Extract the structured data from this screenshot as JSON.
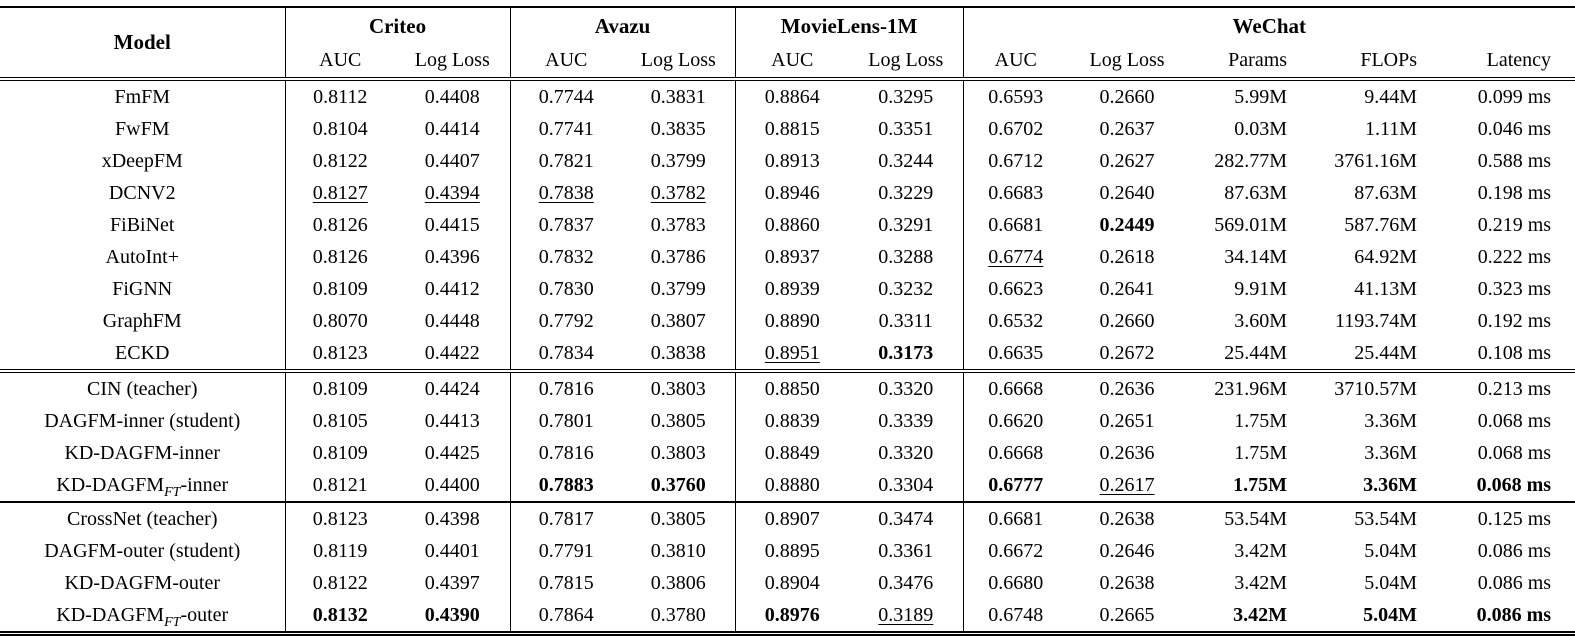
{
  "table": {
    "column_groups": [
      {
        "label": "Model",
        "rowspan": 2,
        "colspan": 1
      },
      {
        "label": "Criteo",
        "rowspan": 1,
        "colspan": 2
      },
      {
        "label": "Avazu",
        "rowspan": 1,
        "colspan": 2
      },
      {
        "label": "MovieLens-1M",
        "rowspan": 1,
        "colspan": 2
      },
      {
        "label": "WeChat",
        "rowspan": 1,
        "colspan": 5
      }
    ],
    "sub_headers": [
      "AUC",
      "Log Loss",
      "AUC",
      "Log Loss",
      "AUC",
      "Log Loss",
      "AUC",
      "Log Loss",
      "Params",
      "FLOPs",
      "Latency"
    ],
    "sections": [
      {
        "name": "baselines",
        "rows": [
          {
            "model": [
              {
                "t": "FmFM"
              }
            ],
            "cells": [
              {
                "t": "0.8112"
              },
              {
                "t": "0.4408"
              },
              {
                "t": "0.7744"
              },
              {
                "t": "0.3831"
              },
              {
                "t": "0.8864"
              },
              {
                "t": "0.3295"
              },
              {
                "t": "0.6593"
              },
              {
                "t": "0.2660"
              },
              {
                "t": "5.99M"
              },
              {
                "t": "9.44M"
              },
              {
                "t": "0.099 ms"
              }
            ]
          },
          {
            "model": [
              {
                "t": "FwFM"
              }
            ],
            "cells": [
              {
                "t": "0.8104"
              },
              {
                "t": "0.4414"
              },
              {
                "t": "0.7741"
              },
              {
                "t": "0.3835"
              },
              {
                "t": "0.8815"
              },
              {
                "t": "0.3351"
              },
              {
                "t": "0.6702"
              },
              {
                "t": "0.2637"
              },
              {
                "t": "0.03M"
              },
              {
                "t": "1.11M"
              },
              {
                "t": "0.046 ms"
              }
            ]
          },
          {
            "model": [
              {
                "t": "xDeepFM"
              }
            ],
            "cells": [
              {
                "t": "0.8122"
              },
              {
                "t": "0.4407"
              },
              {
                "t": "0.7821"
              },
              {
                "t": "0.3799"
              },
              {
                "t": "0.8913"
              },
              {
                "t": "0.3244"
              },
              {
                "t": "0.6712"
              },
              {
                "t": "0.2627"
              },
              {
                "t": "282.77M"
              },
              {
                "t": "3761.16M"
              },
              {
                "t": "0.588 ms"
              }
            ]
          },
          {
            "model": [
              {
                "t": "DCNV2"
              }
            ],
            "cells": [
              {
                "t": "0.8127",
                "u": true
              },
              {
                "t": "0.4394",
                "u": true
              },
              {
                "t": "0.7838",
                "u": true
              },
              {
                "t": "0.3782",
                "u": true
              },
              {
                "t": "0.8946"
              },
              {
                "t": "0.3229"
              },
              {
                "t": "0.6683"
              },
              {
                "t": "0.2640"
              },
              {
                "t": "87.63M"
              },
              {
                "t": "87.63M"
              },
              {
                "t": "0.198 ms"
              }
            ]
          },
          {
            "model": [
              {
                "t": "FiBiNet"
              }
            ],
            "cells": [
              {
                "t": "0.8126"
              },
              {
                "t": "0.4415"
              },
              {
                "t": "0.7837"
              },
              {
                "t": "0.3783"
              },
              {
                "t": "0.8860"
              },
              {
                "t": "0.3291"
              },
              {
                "t": "0.6681"
              },
              {
                "t": "0.2449",
                "b": true
              },
              {
                "t": "569.01M"
              },
              {
                "t": "587.76M"
              },
              {
                "t": "0.219 ms"
              }
            ]
          },
          {
            "model": [
              {
                "t": "AutoInt+"
              }
            ],
            "cells": [
              {
                "t": "0.8126"
              },
              {
                "t": "0.4396"
              },
              {
                "t": "0.7832"
              },
              {
                "t": "0.3786"
              },
              {
                "t": "0.8937"
              },
              {
                "t": "0.3288"
              },
              {
                "t": "0.6774",
                "u": true
              },
              {
                "t": "0.2618"
              },
              {
                "t": "34.14M"
              },
              {
                "t": "64.92M"
              },
              {
                "t": "0.222 ms"
              }
            ]
          },
          {
            "model": [
              {
                "t": "FiGNN"
              }
            ],
            "cells": [
              {
                "t": "0.8109"
              },
              {
                "t": "0.4412"
              },
              {
                "t": "0.7830"
              },
              {
                "t": "0.3799"
              },
              {
                "t": "0.8939"
              },
              {
                "t": "0.3232"
              },
              {
                "t": "0.6623"
              },
              {
                "t": "0.2641"
              },
              {
                "t": "9.91M"
              },
              {
                "t": "41.13M"
              },
              {
                "t": "0.323 ms"
              }
            ]
          },
          {
            "model": [
              {
                "t": "GraphFM"
              }
            ],
            "cells": [
              {
                "t": "0.8070"
              },
              {
                "t": "0.4448"
              },
              {
                "t": "0.7792"
              },
              {
                "t": "0.3807"
              },
              {
                "t": "0.8890"
              },
              {
                "t": "0.3311"
              },
              {
                "t": "0.6532"
              },
              {
                "t": "0.2660"
              },
              {
                "t": "3.60M"
              },
              {
                "t": "1193.74M"
              },
              {
                "t": "0.192 ms"
              }
            ]
          },
          {
            "model": [
              {
                "t": "ECKD"
              }
            ],
            "cells": [
              {
                "t": "0.8123"
              },
              {
                "t": "0.4422"
              },
              {
                "t": "0.7834"
              },
              {
                "t": "0.3838"
              },
              {
                "t": "0.8951",
                "u": true
              },
              {
                "t": "0.3173",
                "b": true
              },
              {
                "t": "0.6635"
              },
              {
                "t": "0.2672"
              },
              {
                "t": "25.44M"
              },
              {
                "t": "25.44M"
              },
              {
                "t": "0.108 ms"
              }
            ]
          }
        ]
      },
      {
        "name": "cin-inner",
        "rows": [
          {
            "model": [
              {
                "t": "CIN (teacher)"
              }
            ],
            "cells": [
              {
                "t": "0.8109"
              },
              {
                "t": "0.4424"
              },
              {
                "t": "0.7816"
              },
              {
                "t": "0.3803"
              },
              {
                "t": "0.8850"
              },
              {
                "t": "0.3320"
              },
              {
                "t": "0.6668"
              },
              {
                "t": "0.2636"
              },
              {
                "t": "231.96M"
              },
              {
                "t": "3710.57M"
              },
              {
                "t": "0.213 ms"
              }
            ]
          },
          {
            "model": [
              {
                "t": "DAGFM-inner (student)"
              }
            ],
            "cells": [
              {
                "t": "0.8105"
              },
              {
                "t": "0.4413"
              },
              {
                "t": "0.7801"
              },
              {
                "t": "0.3805"
              },
              {
                "t": "0.8839"
              },
              {
                "t": "0.3339"
              },
              {
                "t": "0.6620"
              },
              {
                "t": "0.2651"
              },
              {
                "t": "1.75M"
              },
              {
                "t": "3.36M"
              },
              {
                "t": "0.068 ms"
              }
            ]
          },
          {
            "model": [
              {
                "t": "KD-DAGFM-inner"
              }
            ],
            "cells": [
              {
                "t": "0.8109"
              },
              {
                "t": "0.4425"
              },
              {
                "t": "0.7816"
              },
              {
                "t": "0.3803"
              },
              {
                "t": "0.8849"
              },
              {
                "t": "0.3320"
              },
              {
                "t": "0.6668"
              },
              {
                "t": "0.2636"
              },
              {
                "t": "1.75M"
              },
              {
                "t": "3.36M"
              },
              {
                "t": "0.068 ms"
              }
            ]
          },
          {
            "model": [
              {
                "t": "KD-DAGFM"
              },
              {
                "t": "FT",
                "sub": true
              },
              {
                "t": "-inner"
              }
            ],
            "cells": [
              {
                "t": "0.8121"
              },
              {
                "t": "0.4400"
              },
              {
                "t": "0.7883",
                "b": true
              },
              {
                "t": "0.3760",
                "b": true
              },
              {
                "t": "0.8880"
              },
              {
                "t": "0.3304"
              },
              {
                "t": "0.6777",
                "b": true
              },
              {
                "t": "0.2617",
                "u": true
              },
              {
                "t": "1.75M",
                "b": true
              },
              {
                "t": "3.36M",
                "b": true
              },
              {
                "t": "0.068 ms",
                "b": true
              }
            ]
          }
        ]
      },
      {
        "name": "crossnet-outer",
        "rows": [
          {
            "model": [
              {
                "t": "CrossNet (teacher)"
              }
            ],
            "cells": [
              {
                "t": "0.8123"
              },
              {
                "t": "0.4398"
              },
              {
                "t": "0.7817"
              },
              {
                "t": "0.3805"
              },
              {
                "t": "0.8907"
              },
              {
                "t": "0.3474"
              },
              {
                "t": "0.6681"
              },
              {
                "t": "0.2638"
              },
              {
                "t": "53.54M"
              },
              {
                "t": "53.54M"
              },
              {
                "t": "0.125 ms"
              }
            ]
          },
          {
            "model": [
              {
                "t": "DAGFM-outer (student)"
              }
            ],
            "cells": [
              {
                "t": "0.8119"
              },
              {
                "t": "0.4401"
              },
              {
                "t": "0.7791"
              },
              {
                "t": "0.3810"
              },
              {
                "t": "0.8895"
              },
              {
                "t": "0.3361"
              },
              {
                "t": "0.6672"
              },
              {
                "t": "0.2646"
              },
              {
                "t": "3.42M"
              },
              {
                "t": "5.04M"
              },
              {
                "t": "0.086 ms"
              }
            ]
          },
          {
            "model": [
              {
                "t": "KD-DAGFM-outer"
              }
            ],
            "cells": [
              {
                "t": "0.8122"
              },
              {
                "t": "0.4397"
              },
              {
                "t": "0.7815"
              },
              {
                "t": "0.3806"
              },
              {
                "t": "0.8904"
              },
              {
                "t": "0.3476"
              },
              {
                "t": "0.6680"
              },
              {
                "t": "0.2638"
              },
              {
                "t": "3.42M"
              },
              {
                "t": "5.04M"
              },
              {
                "t": "0.086 ms"
              }
            ]
          },
          {
            "model": [
              {
                "t": "KD-DAGFM"
              },
              {
                "t": "FT",
                "sub": true
              },
              {
                "t": "-outer"
              }
            ],
            "cells": [
              {
                "t": "0.8132",
                "b": true
              },
              {
                "t": "0.4390",
                "b": true
              },
              {
                "t": "0.7864"
              },
              {
                "t": "0.3780"
              },
              {
                "t": "0.8976",
                "b": true
              },
              {
                "t": "0.3189",
                "u": true
              },
              {
                "t": "0.6748"
              },
              {
                "t": "0.2665"
              },
              {
                "t": "3.42M",
                "b": true
              },
              {
                "t": "5.04M",
                "b": true
              },
              {
                "t": "0.086 ms",
                "b": true
              }
            ]
          }
        ]
      }
    ]
  }
}
